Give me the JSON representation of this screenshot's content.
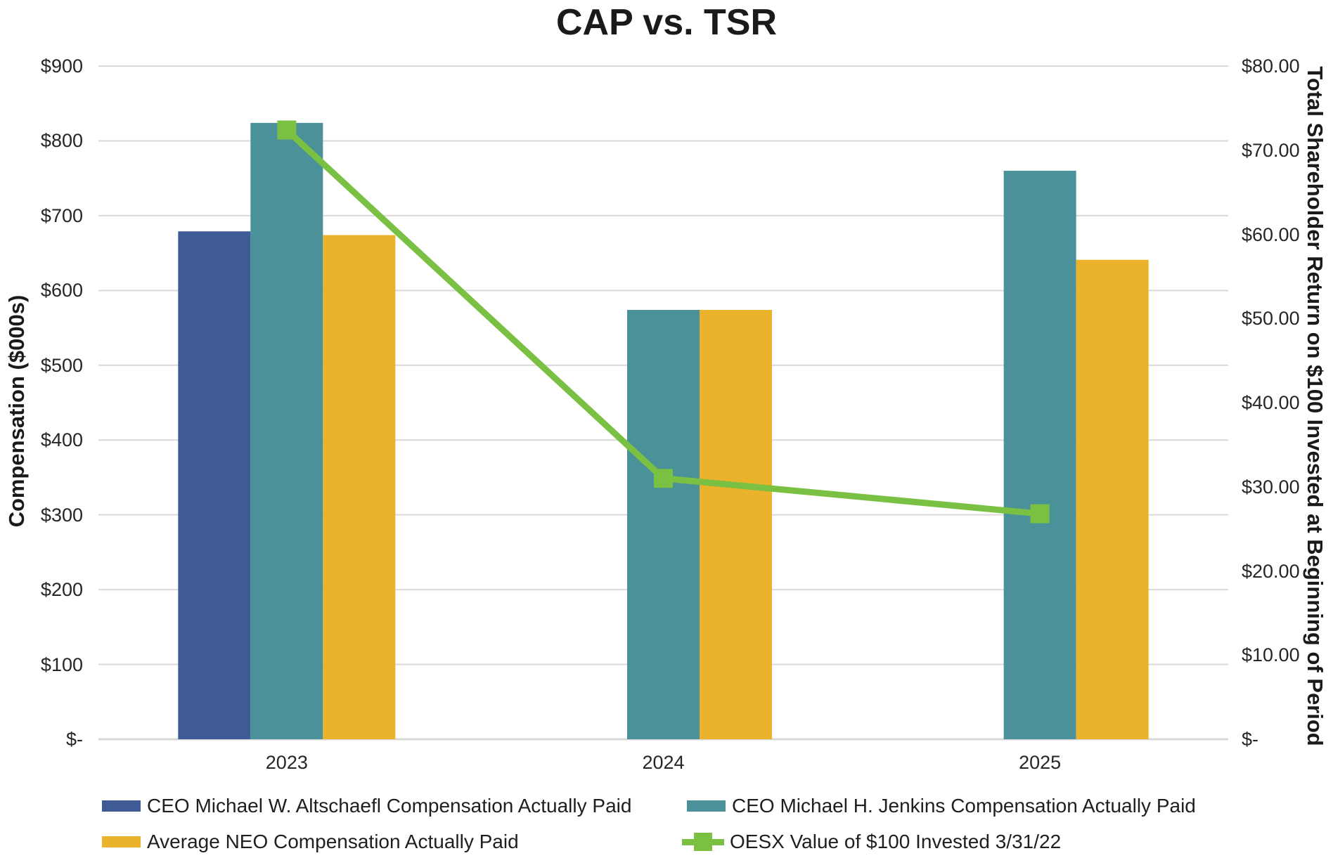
{
  "chart_data": {
    "type": "combo-bar-line",
    "title": "CAP vs. TSR",
    "categories": [
      "2023",
      "2024",
      "2025"
    ],
    "bar_series": [
      {
        "name": "CEO Michael W. Altschaefl Compensation Actually Paid",
        "color": "#3E5B96",
        "values": [
          679,
          null,
          null
        ]
      },
      {
        "name": "CEO Michael H. Jenkins Compensation Actually Paid",
        "color": "#4A9199",
        "values": [
          824,
          574,
          760
        ]
      },
      {
        "name": "Average NEO Compensation Actually Paid",
        "color": "#EBB32B",
        "values": [
          674,
          574,
          641
        ]
      }
    ],
    "line_series": [
      {
        "name": "OESX Value of $100 Invested 3/31/22",
        "color": "#7AC143",
        "axis": "right",
        "marker": "square",
        "values": [
          72.4,
          31,
          26.8
        ]
      }
    ],
    "left_axis": {
      "title": "Compensation ($000s)",
      "min": 0,
      "max": 900,
      "tick_interval": 100,
      "tick_labels": [
        "$-",
        "$100",
        "$200",
        "$300",
        "$400",
        "$500",
        "$600",
        "$700",
        "$800",
        "$900"
      ]
    },
    "right_axis": {
      "title": "Total Shareholder Return on $100 Invested at Beginning of Period",
      "min": 0,
      "max": 80,
      "tick_interval": 10,
      "tick_labels": [
        "$-",
        "$10.00",
        "$20.00",
        "$30.00",
        "$40.00",
        "$50.00",
        "$60.00",
        "$70.00",
        "$80.00"
      ]
    },
    "grid": true,
    "legend_position": "bottom",
    "colors": {
      "gridline": "#D9D9D9",
      "axis_line": "#D9D9D9",
      "text": "#262626"
    }
  }
}
